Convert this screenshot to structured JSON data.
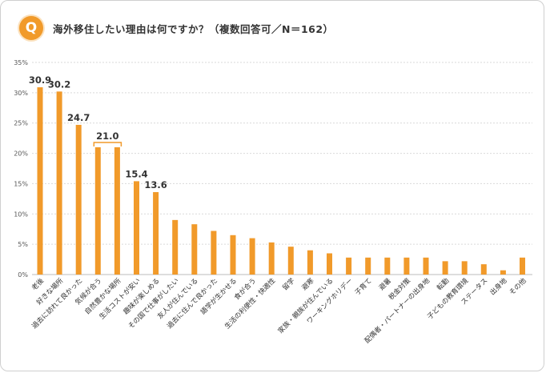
{
  "header": {
    "badge": "Q",
    "question": "海外移住したい理由は何ですか？（複数回答可／N＝162）"
  },
  "colors": {
    "bar": "#f19a2a",
    "accent": "#f19a2a",
    "grid": "#d9d9d9"
  },
  "chart_data": {
    "type": "bar",
    "ylim": [
      0,
      35
    ],
    "yticks": [
      "0%",
      "5%",
      "10%",
      "15%",
      "20%",
      "25%",
      "30%",
      "35%"
    ],
    "grid": "horizontal",
    "categories": [
      "老後",
      "好きな場所",
      "過去に訪れて良かった",
      "気候が合う",
      "自然豊かな場所",
      "生活コストが安い",
      "趣味が楽しめる",
      "その国で仕事がしたい",
      "友人が住んでいる",
      "過去に住んで良かった",
      "語学が生かせる",
      "食が合う",
      "生活の利便性・快適性",
      "留学",
      "避寒",
      "家族・親族が住んでいる",
      "ワーキングホリデー",
      "子育て",
      "避暑",
      "税金対策",
      "配偶者・パートナーの出身地",
      "転勤",
      "子どもの教育環境",
      "ステータス",
      "出身地",
      "その他"
    ],
    "values": [
      30.9,
      30.2,
      24.7,
      21.0,
      21.0,
      15.4,
      13.6,
      9.0,
      8.3,
      7.2,
      6.5,
      6.0,
      5.3,
      4.6,
      4.0,
      3.5,
      2.8,
      2.8,
      2.8,
      2.8,
      2.8,
      2.2,
      2.2,
      1.7,
      0.7,
      2.8
    ],
    "data_labels": [
      {
        "index": 0,
        "text": "30.9"
      },
      {
        "index": 1,
        "text": "30.2"
      },
      {
        "index": 2,
        "text": "24.7"
      },
      {
        "index": 3,
        "text": "21.0",
        "spans_to": 4
      },
      {
        "index": 5,
        "text": "15.4"
      },
      {
        "index": 6,
        "text": "13.6"
      }
    ]
  }
}
